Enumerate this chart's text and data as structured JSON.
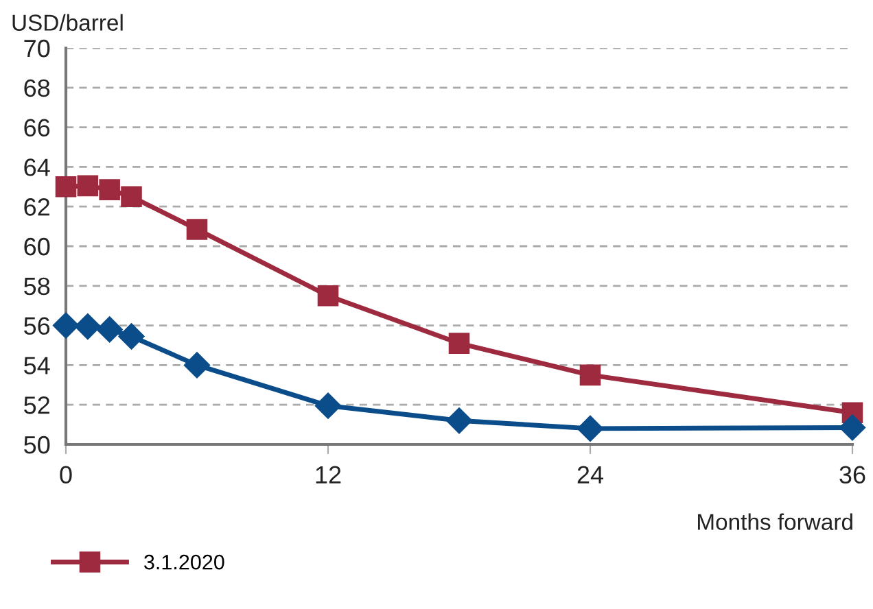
{
  "chart_data": {
    "type": "line",
    "ylabel": "USD/barrel",
    "xlabel": "Months forward",
    "x": [
      0,
      1,
      2,
      3,
      6,
      12,
      18,
      24,
      36
    ],
    "series": [
      {
        "name": "3.1.2020",
        "color": "#9e2a3f",
        "marker": "square",
        "values": [
          63.0,
          63.05,
          62.85,
          62.5,
          60.85,
          57.5,
          55.1,
          53.5,
          51.6
        ]
      },
      {
        "color": "#0b4c8a",
        "marker": "diamond",
        "values": [
          56.0,
          55.95,
          55.8,
          55.45,
          54.0,
          51.95,
          51.2,
          50.8,
          50.85
        ]
      }
    ],
    "xlim": [
      0,
      36
    ],
    "xticks": [
      0,
      12,
      24,
      36
    ],
    "ylim": [
      50,
      70
    ],
    "yticks": [
      50,
      52,
      54,
      56,
      58,
      60,
      62,
      64,
      66,
      68,
      70
    ],
    "grid": "y",
    "legend": "bottom left",
    "line_style": "solid"
  }
}
